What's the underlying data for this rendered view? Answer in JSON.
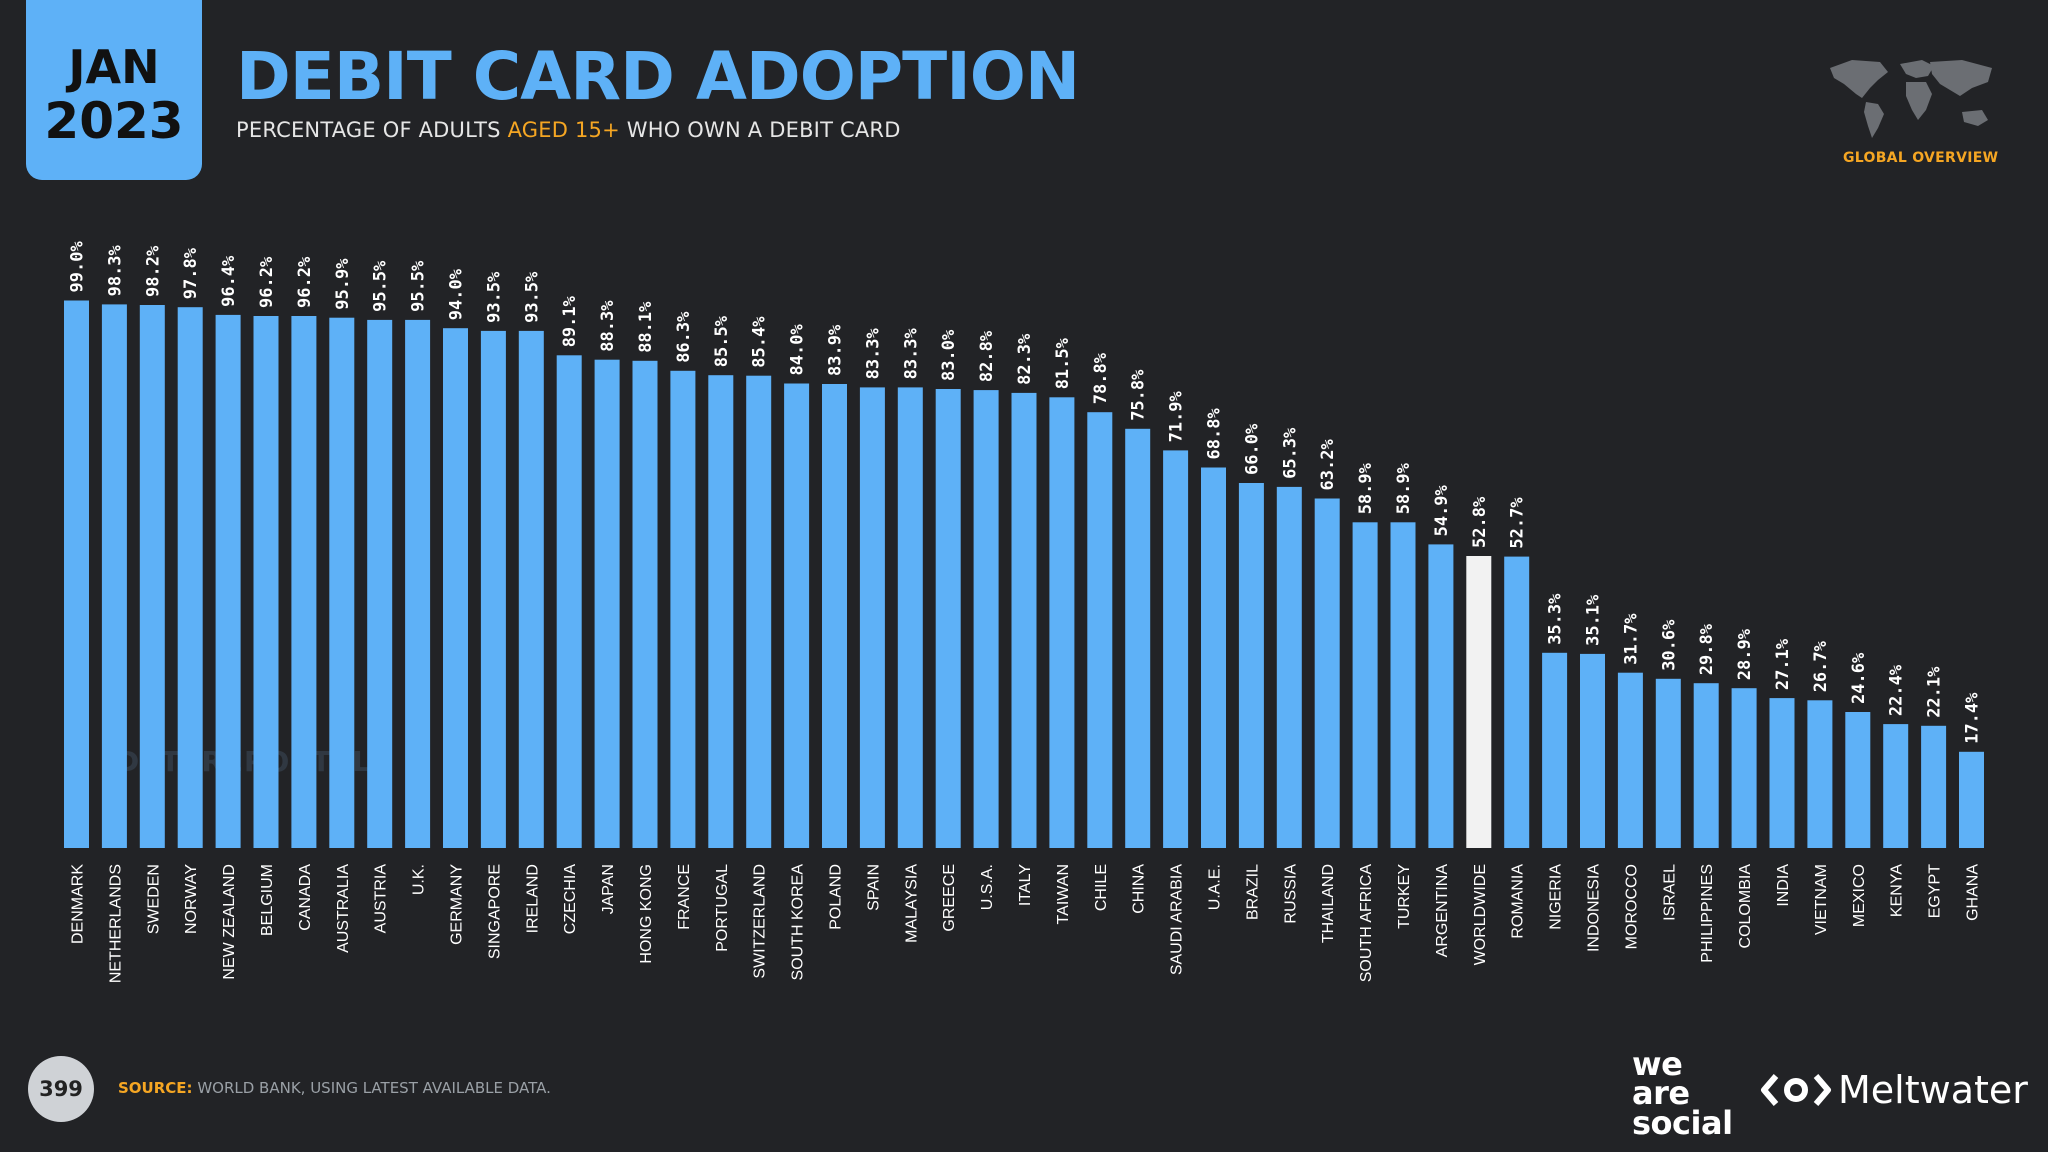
{
  "header": {
    "month": "JAN",
    "year": "2023",
    "title": "DEBIT CARD ADOPTION",
    "subtitle_pre": "PERCENTAGE OF ADULTS ",
    "subtitle_highlight": "AGED 15+",
    "subtitle_post": " WHO OWN A DEBIT CARD",
    "region_label": "GLOBAL OVERVIEW"
  },
  "watermark": "DATAREPORTAL",
  "footer": {
    "page_number": "399",
    "source_label": "SOURCE:",
    "source_text": " WORLD BANK, USING LATEST AVAILABLE DATA.",
    "brand1": "we are social",
    "brand2": "Meltwater"
  },
  "colors": {
    "background": "#222326",
    "bar": "#5eb1f7",
    "highlight_bar": "#f2f2f2",
    "accent": "#f5a623"
  },
  "chart_data": {
    "type": "bar",
    "ylim": [
      0,
      100
    ],
    "grid": false,
    "highlight_category": "WORLDWIDE",
    "categories": [
      "DENMARK",
      "NETHERLANDS",
      "SWEDEN",
      "NORWAY",
      "NEW ZEALAND",
      "BELGIUM",
      "CANADA",
      "AUSTRALIA",
      "AUSTRIA",
      "U.K.",
      "GERMANY",
      "SINGAPORE",
      "IRELAND",
      "CZECHIA",
      "JAPAN",
      "HONG KONG",
      "FRANCE",
      "PORTUGAL",
      "SWITZERLAND",
      "SOUTH KOREA",
      "POLAND",
      "SPAIN",
      "MALAYSIA",
      "GREECE",
      "U.S.A.",
      "ITALY",
      "TAIWAN",
      "CHILE",
      "CHINA",
      "SAUDI ARABIA",
      "U.A.E.",
      "BRAZIL",
      "RUSSIA",
      "THAILAND",
      "SOUTH AFRICA",
      "TURKEY",
      "ARGENTINA",
      "WORLDWIDE",
      "ROMANIA",
      "NIGERIA",
      "INDONESIA",
      "MOROCCO",
      "ISRAEL",
      "PHILIPPINES",
      "COLOMBIA",
      "INDIA",
      "VIETNAM",
      "MEXICO",
      "KENYA",
      "EGYPT",
      "GHANA"
    ],
    "values": [
      99.0,
      98.3,
      98.2,
      97.8,
      96.4,
      96.2,
      96.2,
      95.9,
      95.5,
      95.5,
      94.0,
      93.5,
      93.5,
      89.1,
      88.3,
      88.1,
      86.3,
      85.5,
      85.4,
      84.0,
      83.9,
      83.3,
      83.3,
      83.0,
      82.8,
      82.3,
      81.5,
      78.8,
      75.8,
      71.9,
      68.8,
      66.0,
      65.3,
      63.2,
      58.9,
      58.9,
      54.9,
      52.8,
      52.7,
      35.3,
      35.1,
      31.7,
      30.6,
      29.8,
      28.9,
      27.1,
      26.7,
      24.6,
      22.4,
      22.1,
      17.4
    ],
    "labels": [
      "99.0%",
      "98.3%",
      "98.2%",
      "97.8%",
      "96.4%",
      "96.2%",
      "96.2%",
      "95.9%",
      "95.5%",
      "95.5%",
      "94.0%",
      "93.5%",
      "93.5%",
      "89.1%",
      "88.3%",
      "88.1%",
      "86.3%",
      "85.5%",
      "85.4%",
      "84.0%",
      "83.9%",
      "83.3%",
      "83.3%",
      "83.0%",
      "82.8%",
      "82.3%",
      "81.5%",
      "78.8%",
      "75.8%",
      "71.9%",
      "68.8%",
      "66.0%",
      "65.3%",
      "63.2%",
      "58.9%",
      "58.9%",
      "54.9%",
      "52.8%",
      "52.7%",
      "35.3%",
      "35.1%",
      "31.7%",
      "30.6%",
      "29.8%",
      "28.9%",
      "27.1%",
      "26.7%",
      "24.6%",
      "22.4%",
      "22.1%",
      "17.4%"
    ]
  }
}
